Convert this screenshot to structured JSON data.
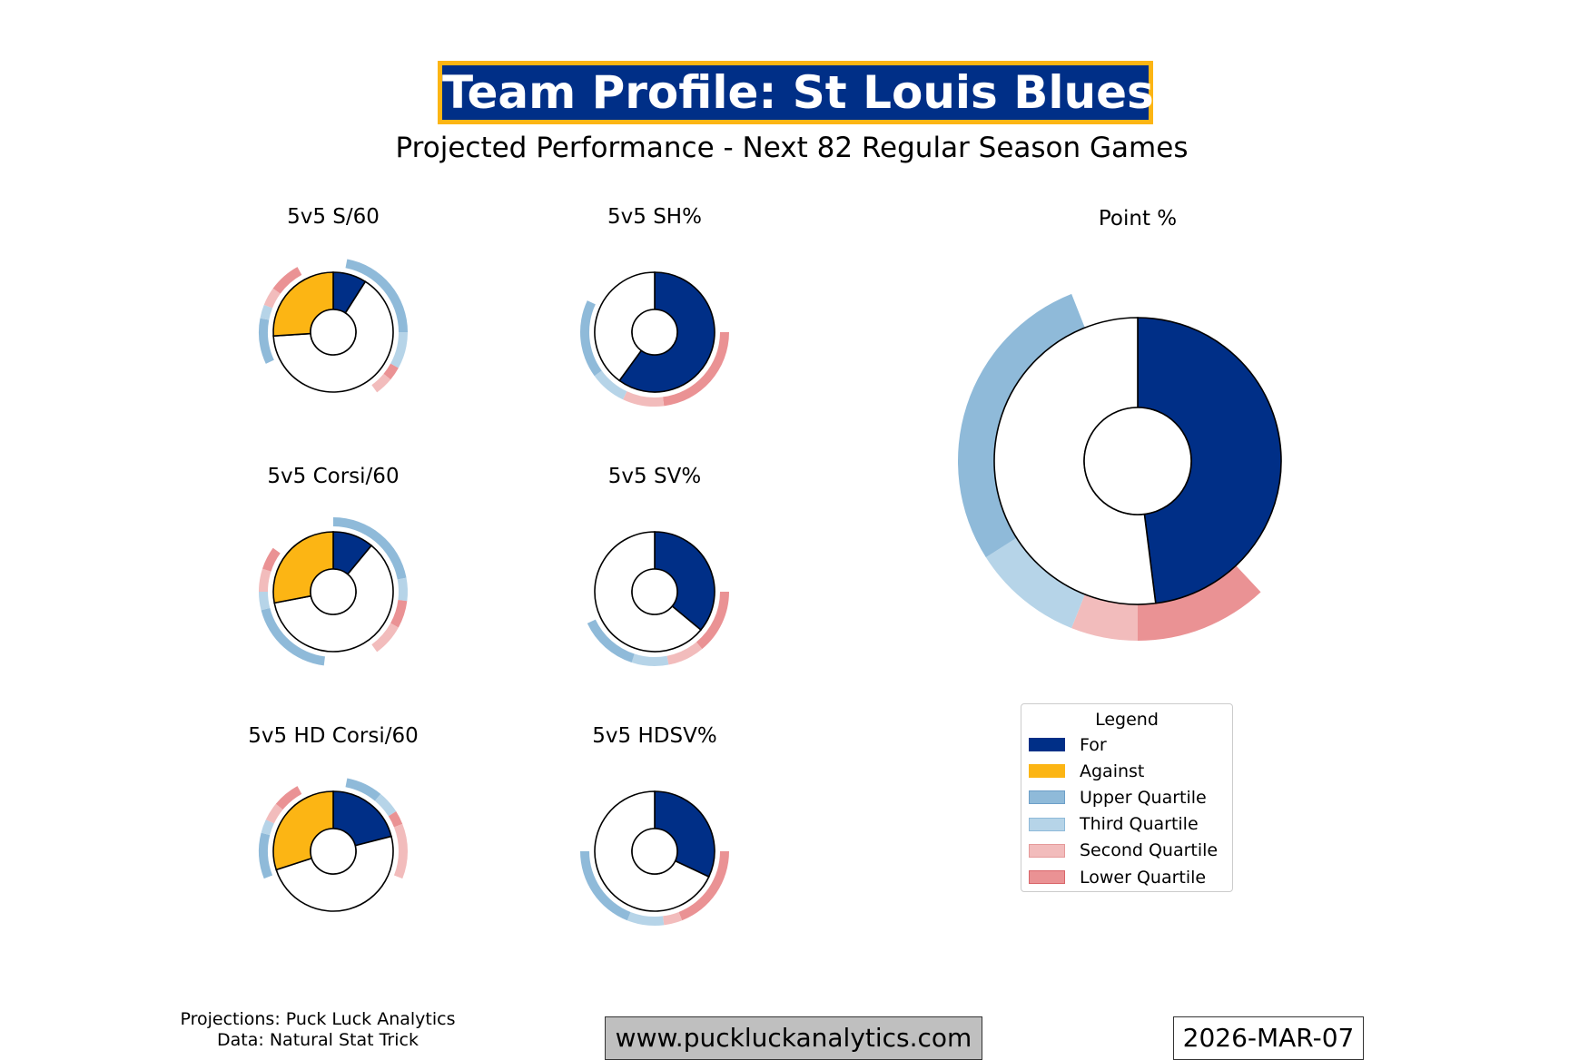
{
  "header": {
    "title": "Team Profile: St Louis Blues",
    "subtitle": "Projected Performance - Next 82 Regular Season Games"
  },
  "colors": {
    "for": "#002f87",
    "against": "#fcb514",
    "upper_quartile": "#8fbad9",
    "third_quartile": "#b6d4e8",
    "second_quartile": "#f2bcbc",
    "lower_quartile": "#ea9294",
    "remainder": "#ffffff"
  },
  "chart_data": [
    {
      "type": "pie",
      "title": "5v5 S/60",
      "for": 0.09,
      "against": 0.26,
      "has_against": true,
      "ring_for": [
        {
          "quartile": "upper",
          "start": 0.03,
          "end": 0.25
        },
        {
          "quartile": "third",
          "start": 0.25,
          "end": 0.33
        },
        {
          "quartile": "lower",
          "start": 0.33,
          "end": 0.36
        },
        {
          "quartile": "second",
          "start": 0.36,
          "end": 0.4
        }
      ],
      "ring_against": [
        {
          "quartile": "upper",
          "start": 0.68,
          "end": 0.78
        },
        {
          "quartile": "third",
          "start": 0.78,
          "end": 0.81
        },
        {
          "quartile": "second",
          "start": 0.81,
          "end": 0.85
        },
        {
          "quartile": "lower",
          "start": 0.85,
          "end": 0.92
        }
      ]
    },
    {
      "type": "pie",
      "title": "5v5 SH%",
      "for": 0.6,
      "against": 0,
      "has_against": false,
      "ring_for": [
        {
          "quartile": "lower",
          "start": 0.25,
          "end": 0.48
        },
        {
          "quartile": "second",
          "start": 0.48,
          "end": 0.57
        },
        {
          "quartile": "third",
          "start": 0.57,
          "end": 0.65
        },
        {
          "quartile": "upper",
          "start": 0.65,
          "end": 0.82
        }
      ]
    },
    {
      "type": "pie",
      "title": "Point %",
      "for": 0.48,
      "against": 0,
      "has_against": false,
      "ring_for": [
        {
          "quartile": "lower",
          "start": 0.38,
          "end": 0.5
        },
        {
          "quartile": "second",
          "start": 0.5,
          "end": 0.56
        },
        {
          "quartile": "third",
          "start": 0.56,
          "end": 0.66
        },
        {
          "quartile": "upper",
          "start": 0.66,
          "end": 0.94
        }
      ]
    },
    {
      "type": "pie",
      "title": "5v5 Corsi/60",
      "for": 0.11,
      "against": 0.28,
      "has_against": true,
      "ring_for": [
        {
          "quartile": "upper",
          "start": 0.0,
          "end": 0.22
        },
        {
          "quartile": "third",
          "start": 0.22,
          "end": 0.27
        },
        {
          "quartile": "lower",
          "start": 0.27,
          "end": 0.33
        },
        {
          "quartile": "second",
          "start": 0.33,
          "end": 0.4
        }
      ],
      "ring_against": [
        {
          "quartile": "upper",
          "start": 0.52,
          "end": 0.71
        },
        {
          "quartile": "third",
          "start": 0.71,
          "end": 0.75
        },
        {
          "quartile": "second",
          "start": 0.75,
          "end": 0.8
        },
        {
          "quartile": "lower",
          "start": 0.8,
          "end": 0.85
        }
      ]
    },
    {
      "type": "pie",
      "title": "5v5 SV%",
      "for": 0.36,
      "against": 0,
      "has_against": false,
      "ring_for": [
        {
          "quartile": "lower",
          "start": 0.25,
          "end": 0.39
        },
        {
          "quartile": "second",
          "start": 0.39,
          "end": 0.47
        },
        {
          "quartile": "third",
          "start": 0.47,
          "end": 0.55
        },
        {
          "quartile": "upper",
          "start": 0.55,
          "end": 0.68
        }
      ]
    },
    {
      "type": "pie",
      "title": "5v5 HD Corsi/60",
      "for": 0.21,
      "against": 0.3,
      "has_against": true,
      "ring_for": [
        {
          "quartile": "upper",
          "start": 0.03,
          "end": 0.11
        },
        {
          "quartile": "third",
          "start": 0.11,
          "end": 0.16
        },
        {
          "quartile": "lower",
          "start": 0.16,
          "end": 0.19
        },
        {
          "quartile": "second",
          "start": 0.19,
          "end": 0.31
        }
      ],
      "ring_against": [
        {
          "quartile": "upper",
          "start": 0.69,
          "end": 0.79
        },
        {
          "quartile": "third",
          "start": 0.79,
          "end": 0.82
        },
        {
          "quartile": "second",
          "start": 0.82,
          "end": 0.86
        },
        {
          "quartile": "lower",
          "start": 0.86,
          "end": 0.92
        }
      ]
    },
    {
      "type": "pie",
      "title": "5v5 HDSV%",
      "for": 0.32,
      "against": 0,
      "has_against": false,
      "ring_for": [
        {
          "quartile": "lower",
          "start": 0.25,
          "end": 0.44
        },
        {
          "quartile": "second",
          "start": 0.44,
          "end": 0.48
        },
        {
          "quartile": "third",
          "start": 0.48,
          "end": 0.56
        },
        {
          "quartile": "upper",
          "start": 0.56,
          "end": 0.75
        }
      ]
    }
  ],
  "legend": {
    "title": "Legend",
    "placement": "lower-right",
    "items": [
      {
        "label": "For",
        "color": "#002f87",
        "edge": "#002f87"
      },
      {
        "label": "Against",
        "color": "#fcb514",
        "edge": "#fcb514"
      },
      {
        "label": "Upper Quartile",
        "color": "#8fbad9",
        "edge": "#6d9fc8"
      },
      {
        "label": "Third Quartile",
        "color": "#b6d4e8",
        "edge": "#8fbad9"
      },
      {
        "label": "Second Quartile",
        "color": "#f2bcbc",
        "edge": "#e59a9a"
      },
      {
        "label": "Lower Quartile",
        "color": "#ea9294",
        "edge": "#d9666a"
      }
    ]
  },
  "footer": {
    "credits_line1": "Projections: Puck Luck Analytics",
    "credits_line2": "Data: Natural Stat Trick",
    "website": "www.puckluckanalytics.com",
    "date": "2026-MAR-07"
  }
}
